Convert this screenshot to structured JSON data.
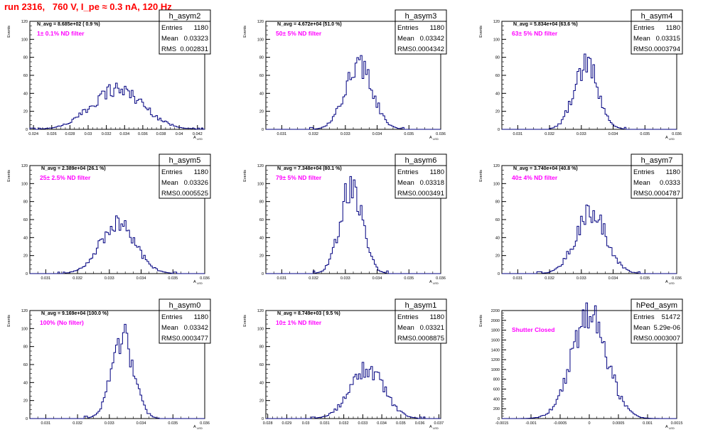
{
  "run_title": "run 2316,   760 V, I_pe ≈ 0.3 nA, 120 Hz",
  "ylabel": "Events",
  "xlabel_main": "A",
  "xlabel_sub": "LED",
  "stats_labels": [
    "Entries",
    "Mean",
    "RMS"
  ],
  "colors": {
    "histogram": "#000080",
    "annotation": "#ff00ff",
    "title": "#ff0000"
  },
  "chart_data": [
    {
      "type": "bar",
      "name": "h_asym2",
      "navg_text": "N_avg = 8.685e+02 ( 0.9 %)",
      "filter_text": "1± 0.1% ND filter",
      "stats": {
        "Entries": "1180",
        "Mean": "0.03323",
        "RMS": "0.002831"
      },
      "mean": 0.03323,
      "rms": 0.002831,
      "entries": 1180,
      "peak": 45,
      "xlim": [
        0.0236,
        0.0428
      ],
      "ylim": [
        0,
        120
      ],
      "xticks": [
        "0.024",
        "0.026",
        "0.028",
        "0.03",
        "0.032",
        "0.034",
        "0.036",
        "0.038",
        "0.04",
        "0.042"
      ],
      "xtick_values": [
        0.024,
        0.026,
        0.028,
        0.03,
        0.032,
        0.034,
        0.036,
        0.038,
        0.04,
        0.042
      ],
      "yticks": [
        "0",
        "20",
        "40",
        "60",
        "80",
        "100",
        "120"
      ]
    },
    {
      "type": "bar",
      "name": "h_asym3",
      "navg_text": "N_avg = 4.672e+04 (51.0 %)",
      "filter_text": "50± 5% ND filter",
      "stats": {
        "Entries": "1180",
        "Mean": "0.03342",
        "RMS": "0.0004342"
      },
      "mean": 0.03342,
      "rms": 0.0004342,
      "entries": 1180,
      "peak": 70,
      "xlim": [
        0.0305,
        0.036
      ],
      "ylim": [
        0,
        120
      ],
      "xticks": [
        "0.031",
        "0.032",
        "0.033",
        "0.034",
        "0.035",
        "0.036"
      ],
      "xtick_values": [
        0.031,
        0.032,
        0.033,
        0.034,
        0.035,
        0.036
      ],
      "yticks": [
        "0",
        "20",
        "40",
        "60",
        "80",
        "100",
        "120"
      ]
    },
    {
      "type": "bar",
      "name": "h_asym4",
      "navg_text": "N_avg = 5.834e+04 (63.6 %)",
      "filter_text": "63± 5% ND filter",
      "stats": {
        "Entries": "1180",
        "Mean": "0.03315",
        "RMS": "0.0003794"
      },
      "mean": 0.03315,
      "rms": 0.0003794,
      "entries": 1180,
      "peak": 73,
      "xlim": [
        0.0305,
        0.036
      ],
      "ylim": [
        0,
        120
      ],
      "xticks": [
        "0.031",
        "0.032",
        "0.033",
        "0.034",
        "0.035",
        "0.036"
      ],
      "xtick_values": [
        0.031,
        0.032,
        0.033,
        0.034,
        0.035,
        0.036
      ],
      "yticks": [
        "0",
        "20",
        "40",
        "60",
        "80",
        "100",
        "120"
      ]
    },
    {
      "type": "bar",
      "name": "h_asym5",
      "navg_text": "N_avg = 2.389e+04 (26.1 %)",
      "filter_text": "25± 2.5% ND filter",
      "stats": {
        "Entries": "1180",
        "Mean": "0.03326",
        "RMS": "0.0005525"
      },
      "mean": 0.03326,
      "rms": 0.0005525,
      "entries": 1180,
      "peak": 55,
      "xlim": [
        0.0305,
        0.036
      ],
      "ylim": [
        0,
        120
      ],
      "xticks": [
        "0.031",
        "0.032",
        "0.033",
        "0.034",
        "0.035",
        "0.036"
      ],
      "xtick_values": [
        0.031,
        0.032,
        0.033,
        0.034,
        0.035,
        0.036
      ],
      "yticks": [
        "0",
        "20",
        "40",
        "60",
        "80",
        "100",
        "120"
      ]
    },
    {
      "type": "bar",
      "name": "h_asym6",
      "navg_text": "N_avg = 7.348e+04 (80.1 %)",
      "filter_text": "79± 5% ND filter",
      "stats": {
        "Entries": "1180",
        "Mean": "0.03318",
        "RMS": "0.0003491"
      },
      "mean": 0.03318,
      "rms": 0.0003491,
      "entries": 1180,
      "peak": 98,
      "xlim": [
        0.0305,
        0.036
      ],
      "ylim": [
        0,
        120
      ],
      "xticks": [
        "0.031",
        "0.032",
        "0.033",
        "0.034",
        "0.035",
        "0.036"
      ],
      "xtick_values": [
        0.031,
        0.032,
        0.033,
        0.034,
        0.035,
        0.036
      ],
      "yticks": [
        "0",
        "20",
        "40",
        "60",
        "80",
        "100",
        "120"
      ]
    },
    {
      "type": "bar",
      "name": "h_asym7",
      "navg_text": "N_avg = 3.740e+04 (40.8 %)",
      "filter_text": "40± 4% ND filter",
      "stats": {
        "Entries": "1180",
        "Mean": "0.0333",
        "RMS": "0.0004787"
      },
      "mean": 0.0333,
      "rms": 0.0004787,
      "entries": 1180,
      "peak": 68,
      "xlim": [
        0.0305,
        0.036
      ],
      "ylim": [
        0,
        120
      ],
      "xticks": [
        "0.031",
        "0.032",
        "0.033",
        "0.034",
        "0.035",
        "0.036"
      ],
      "xtick_values": [
        0.031,
        0.032,
        0.033,
        0.034,
        0.035,
        0.036
      ],
      "yticks": [
        "0",
        "20",
        "40",
        "60",
        "80",
        "100",
        "120"
      ]
    },
    {
      "type": "bar",
      "name": "h_asym0",
      "navg_text": "N_avg = 9.169e+04 (100.0 %)",
      "filter_text": "100% (No filter)",
      "stats": {
        "Entries": "1180",
        "Mean": "0.03342",
        "RMS": "0.0003477"
      },
      "mean": 0.03342,
      "rms": 0.0003477,
      "entries": 1180,
      "peak": 90,
      "xlim": [
        0.0305,
        0.036
      ],
      "ylim": [
        0,
        120
      ],
      "xticks": [
        "0.031",
        "0.032",
        "0.033",
        "0.034",
        "0.035",
        "0.036"
      ],
      "xtick_values": [
        0.031,
        0.032,
        0.033,
        0.034,
        0.035,
        0.036
      ],
      "yticks": [
        "0",
        "20",
        "40",
        "60",
        "80",
        "100",
        "120"
      ]
    },
    {
      "type": "bar",
      "name": "h_asym1",
      "navg_text": "N_avg = 8.749e+03 ( 9.5 %)",
      "filter_text": "10± 1% ND filter",
      "stats": {
        "Entries": "1180",
        "Mean": "0.03321",
        "RMS": "0.0008875"
      },
      "mean": 0.03321,
      "rms": 0.0008875,
      "entries": 1180,
      "peak": 55,
      "xlim": [
        0.0279,
        0.0371
      ],
      "ylim": [
        0,
        120
      ],
      "xticks": [
        "0.028",
        "0.029",
        "0.03",
        "0.031",
        "0.032",
        "0.033",
        "0.034",
        "0.035",
        "0.036",
        "0.037"
      ],
      "xtick_values": [
        0.028,
        0.029,
        0.03,
        0.031,
        0.032,
        0.033,
        0.034,
        0.035,
        0.036,
        0.037
      ],
      "yticks": [
        "0",
        "20",
        "40",
        "60",
        "80",
        "100",
        "120"
      ]
    },
    {
      "type": "bar",
      "name": "hPed_asym",
      "navg_text": "",
      "filter_text": "Shutter Closed",
      "stats": {
        "Entries": "51472",
        "Mean": "5.29e-06",
        "RMS": "0.0003007"
      },
      "mean": 5.29e-06,
      "rms": 0.0003007,
      "entries": 51472,
      "peak": 2100,
      "xlim": [
        -0.0015,
        0.0015
      ],
      "ylim": [
        0,
        2200
      ],
      "xticks": [
        "-0.0015",
        "-0.001",
        "-0.0005",
        "0",
        "0.0005",
        "0.001",
        "0.0015"
      ],
      "xtick_values": [
        -0.0015,
        -0.001,
        -0.0005,
        0,
        0.0005,
        0.001,
        0.0015
      ],
      "yticks": [
        "0",
        "200",
        "400",
        "600",
        "800",
        "1000",
        "1200",
        "1400",
        "1600",
        "1800",
        "2000",
        "2200"
      ]
    }
  ]
}
